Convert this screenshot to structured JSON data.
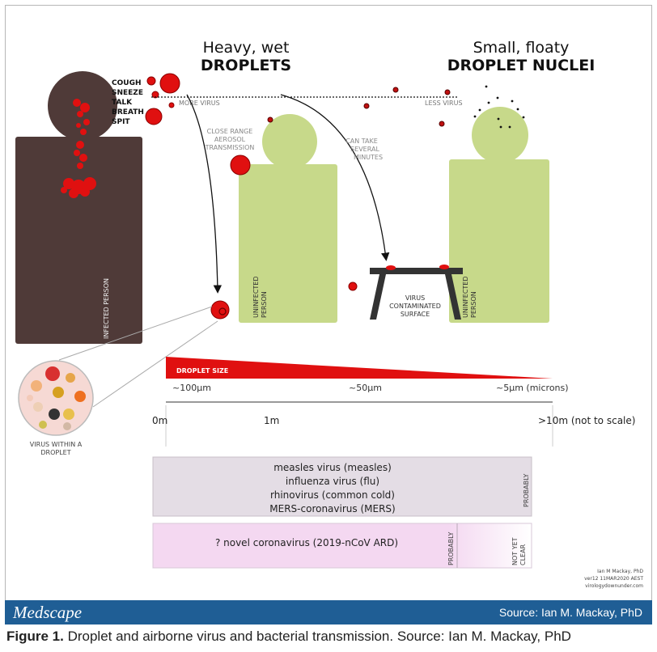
{
  "headings": {
    "left_line1": "Heavy, wet",
    "left_line2": "DROPLETS",
    "right_line1": "Small, floaty",
    "right_line2": "DROPLET NUCLEI"
  },
  "actions": [
    "COUGH",
    "SNEEZE",
    "TALK",
    "BREATH",
    "SPIT"
  ],
  "labels": {
    "more_virus": "MORE VIRUS",
    "less_virus": "LESS VIRUS",
    "close_range": [
      "CLOSE RANGE",
      "AEROSOL",
      "TRANSMISSION"
    ],
    "can_take": [
      "CAN TAKE",
      "SEVERAL",
      "MINUTES"
    ],
    "infected_person": "INFECTED PERSON",
    "uninfected_person": [
      "UNINFECTED",
      "PERSON"
    ],
    "surface": [
      "VIRUS",
      "CONTAMINATED",
      "SURFACE"
    ],
    "virus_within": [
      "VIRUS WITHIN A",
      "DROPLET"
    ]
  },
  "droplet_size": {
    "title": "DROPLET SIZE",
    "ticks": [
      "~100µm",
      "~50µm",
      "~5µm (microns)"
    ]
  },
  "distance": {
    "ticks": [
      "0m",
      "1m",
      ">10m (not to scale)"
    ]
  },
  "box1": {
    "items": [
      "measles virus (measles)",
      "influenza virus (flu)",
      "rhinovirus (common cold)",
      "MERS-coronavirus (MERS)"
    ],
    "side": "PROBABLY"
  },
  "box2": {
    "item": "? novel coronavirus (2019-nCoV ARD)",
    "side1": "PROBABLY",
    "side2": [
      "NOT YET",
      "CLEAR"
    ]
  },
  "credit": [
    "Ian M Mackay, PhD",
    "ver12 11MAR2020 AEST",
    "virologydownunder.com"
  ],
  "footer": {
    "brand": "Medscape",
    "source": "Source: Ian M. Mackay, PhD"
  },
  "caption": {
    "label": "Figure 1.",
    "text": " Droplet and airborne virus and bacterial transmission. Source: Ian M. Mackay, PhD"
  },
  "colors": {
    "infected": "#4f3a38",
    "uninfected": "#c7d98a",
    "droplet": "#e01010",
    "box1": "#e4dde5",
    "box2": "#f4d8f1",
    "footer": "#1f5e95"
  }
}
